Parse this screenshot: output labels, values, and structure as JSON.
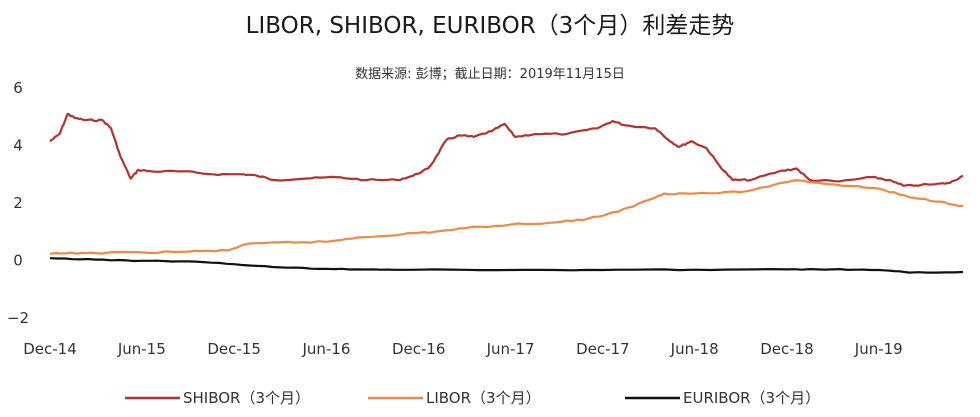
{
  "chart_data": {
    "type": "line",
    "title": "LIBOR, SHIBOR, EURIBOR（3个月）利差走势",
    "subtitle": "数据来源: 彭博；截止日期：2019年11月15日",
    "xlabel": "",
    "ylabel": "",
    "ylim": [
      -2,
      6
    ],
    "y_ticks": [
      "6",
      "4",
      "2",
      "0",
      "−2"
    ],
    "x_tick_labels": [
      "Dec-14",
      "Jun-15",
      "Dec-15",
      "Jun-16",
      "Dec-16",
      "Jun-17",
      "Dec-17",
      "Jun-18",
      "Dec-18",
      "Jun-19"
    ],
    "x_tick_dates": [
      "2014-12-01",
      "2015-06-01",
      "2015-12-01",
      "2016-06-01",
      "2016-12-01",
      "2017-06-01",
      "2017-12-01",
      "2018-06-01",
      "2018-12-01",
      "2019-06-01"
    ],
    "xlim": [
      "2014-12-01",
      "2019-11-15"
    ],
    "grid": "none",
    "legend_position": "bottom",
    "series": [
      {
        "name": "SHIBOR（3个月）",
        "color": "#b5312b",
        "points": [
          [
            "2014-12-01",
            4.15
          ],
          [
            "2014-12-20",
            4.4
          ],
          [
            "2015-01-05",
            5.1
          ],
          [
            "2015-01-20",
            4.95
          ],
          [
            "2015-02-10",
            4.88
          ],
          [
            "2015-03-15",
            4.88
          ],
          [
            "2015-04-01",
            4.6
          ],
          [
            "2015-04-20",
            3.6
          ],
          [
            "2015-05-10",
            2.85
          ],
          [
            "2015-05-25",
            3.15
          ],
          [
            "2015-06-20",
            3.1
          ],
          [
            "2015-08-20",
            3.1
          ],
          [
            "2015-10-20",
            3.0
          ],
          [
            "2015-12-20",
            3.0
          ],
          [
            "2016-01-15",
            2.95
          ],
          [
            "2016-02-20",
            2.8
          ],
          [
            "2016-04-20",
            2.85
          ],
          [
            "2016-06-20",
            2.9
          ],
          [
            "2016-08-20",
            2.8
          ],
          [
            "2016-10-20",
            2.8
          ],
          [
            "2016-11-20",
            2.95
          ],
          [
            "2016-12-20",
            3.2
          ],
          [
            "2017-01-01",
            3.5
          ],
          [
            "2017-01-25",
            4.2
          ],
          [
            "2017-02-20",
            4.35
          ],
          [
            "2017-03-20",
            4.3
          ],
          [
            "2017-04-25",
            4.5
          ],
          [
            "2017-05-20",
            4.75
          ],
          [
            "2017-06-10",
            4.3
          ],
          [
            "2017-07-20",
            4.4
          ],
          [
            "2017-09-20",
            4.4
          ],
          [
            "2017-11-20",
            4.6
          ],
          [
            "2017-12-20",
            4.85
          ],
          [
            "2018-01-15",
            4.7
          ],
          [
            "2018-03-15",
            4.6
          ],
          [
            "2018-04-10",
            4.2
          ],
          [
            "2018-05-01",
            3.95
          ],
          [
            "2018-05-25",
            4.15
          ],
          [
            "2018-06-25",
            3.9
          ],
          [
            "2018-07-20",
            3.3
          ],
          [
            "2018-08-15",
            2.8
          ],
          [
            "2018-09-20",
            2.8
          ],
          [
            "2018-11-15",
            3.1
          ],
          [
            "2018-12-20",
            3.2
          ],
          [
            "2019-01-15",
            2.8
          ],
          [
            "2019-03-15",
            2.75
          ],
          [
            "2019-05-20",
            2.9
          ],
          [
            "2019-06-20",
            2.8
          ],
          [
            "2019-07-20",
            2.6
          ],
          [
            "2019-09-20",
            2.65
          ],
          [
            "2019-10-20",
            2.7
          ],
          [
            "2019-11-15",
            2.95
          ]
        ]
      },
      {
        "name": "LIBOR（3个月）",
        "color": "#ee8a45",
        "points": [
          [
            "2014-12-01",
            0.23
          ],
          [
            "2015-02-01",
            0.26
          ],
          [
            "2015-06-01",
            0.28
          ],
          [
            "2015-09-01",
            0.31
          ],
          [
            "2015-11-20",
            0.35
          ],
          [
            "2015-12-20",
            0.55
          ],
          [
            "2016-03-01",
            0.63
          ],
          [
            "2016-06-01",
            0.65
          ],
          [
            "2016-08-01",
            0.8
          ],
          [
            "2016-11-01",
            0.92
          ],
          [
            "2017-01-01",
            1.0
          ],
          [
            "2017-03-01",
            1.12
          ],
          [
            "2017-06-01",
            1.25
          ],
          [
            "2017-09-01",
            1.33
          ],
          [
            "2017-11-01",
            1.45
          ],
          [
            "2018-01-01",
            1.7
          ],
          [
            "2018-03-01",
            2.1
          ],
          [
            "2018-04-01",
            2.33
          ],
          [
            "2018-06-01",
            2.33
          ],
          [
            "2018-09-01",
            2.38
          ],
          [
            "2018-12-20",
            2.8
          ],
          [
            "2019-02-01",
            2.7
          ],
          [
            "2019-04-01",
            2.6
          ],
          [
            "2019-06-01",
            2.5
          ],
          [
            "2019-08-01",
            2.2
          ],
          [
            "2019-10-01",
            2.05
          ],
          [
            "2019-11-15",
            1.9
          ]
        ]
      },
      {
        "name": "EURIBOR（3个月）",
        "color": "#111111",
        "points": [
          [
            "2014-12-01",
            0.08
          ],
          [
            "2015-03-01",
            0.03
          ],
          [
            "2015-06-01",
            -0.01
          ],
          [
            "2015-09-01",
            -0.03
          ],
          [
            "2015-12-01",
            -0.13
          ],
          [
            "2016-03-01",
            -0.24
          ],
          [
            "2016-06-01",
            -0.29
          ],
          [
            "2016-09-01",
            -0.31
          ],
          [
            "2016-12-01",
            -0.32
          ],
          [
            "2017-06-01",
            -0.33
          ],
          [
            "2017-12-01",
            -0.33
          ],
          [
            "2018-06-01",
            -0.32
          ],
          [
            "2018-12-01",
            -0.31
          ],
          [
            "2019-03-01",
            -0.31
          ],
          [
            "2019-06-01",
            -0.33
          ],
          [
            "2019-08-01",
            -0.42
          ],
          [
            "2019-11-15",
            -0.4
          ]
        ]
      }
    ]
  }
}
